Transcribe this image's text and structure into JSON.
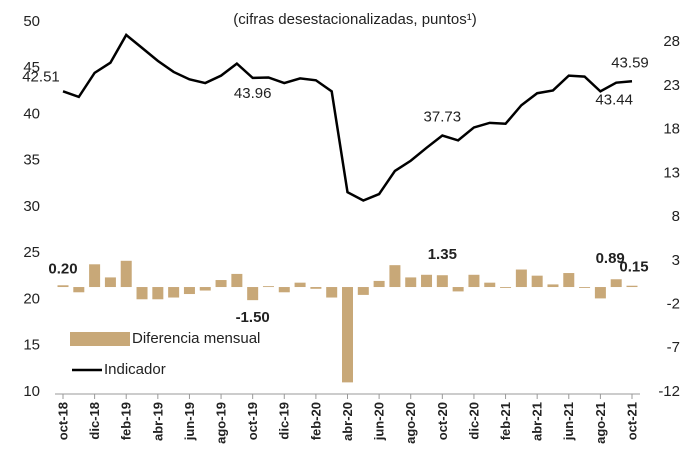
{
  "chart_data": {
    "type": "bar+line",
    "subtitle": "(cifras desestacionalizadas, puntos¹)",
    "categories": [
      "oct-18",
      null,
      "dic-18",
      null,
      "feb-19",
      null,
      "abr-19",
      null,
      "jun-19",
      null,
      "ago-19",
      null,
      "oct-19",
      null,
      "dic-19",
      null,
      "feb-20",
      null,
      "abr-20",
      null,
      "jun-20",
      null,
      "ago-20",
      null,
      "oct-20",
      null,
      "dic-20",
      null,
      "feb-21",
      null,
      "abr-21",
      null,
      "jun-21",
      null,
      "ago-21",
      null,
      "oct-21"
    ],
    "series": [
      {
        "name": "Diferencia mensual",
        "type": "bar",
        "axis": "y2",
        "color": "#c8a878",
        "values": [
          0.2,
          -0.6,
          2.6,
          1.1,
          3.0,
          -1.4,
          -1.4,
          -1.2,
          -0.8,
          -0.4,
          0.8,
          1.5,
          -1.5,
          0.1,
          -0.6,
          0.5,
          -0.2,
          -1.2,
          -10.9,
          -0.9,
          0.7,
          2.5,
          1.1,
          1.4,
          1.35,
          -0.5,
          1.4,
          0.5,
          -0.1,
          2.0,
          1.3,
          0.3,
          1.6,
          -0.1,
          -1.3,
          0.89,
          0.15
        ],
        "value_labels": [
          "0.20",
          null,
          null,
          null,
          null,
          null,
          null,
          null,
          null,
          null,
          null,
          null,
          "-1.50",
          null,
          null,
          null,
          null,
          null,
          null,
          null,
          null,
          null,
          null,
          null,
          "1.35",
          null,
          null,
          null,
          null,
          null,
          null,
          null,
          null,
          null,
          null,
          "0.89",
          "0.15"
        ]
      },
      {
        "name": "Indicador",
        "type": "line",
        "color": "#000000",
        "values": [
          42.51,
          41.9,
          44.5,
          45.6,
          48.6,
          47.2,
          45.8,
          44.6,
          43.8,
          43.4,
          44.2,
          45.5,
          43.96,
          44.0,
          43.4,
          43.9,
          43.7,
          42.5,
          31.6,
          30.7,
          31.4,
          33.9,
          35.0,
          36.4,
          37.73,
          37.2,
          38.6,
          39.1,
          39.0,
          41.0,
          42.3,
          42.6,
          44.2,
          44.1,
          42.5,
          43.44,
          43.59
        ],
        "value_labels": [
          "42.51",
          null,
          null,
          null,
          null,
          null,
          null,
          null,
          null,
          null,
          null,
          null,
          "43.96",
          null,
          null,
          null,
          null,
          null,
          null,
          null,
          null,
          null,
          null,
          null,
          "37.73",
          null,
          null,
          null,
          null,
          null,
          null,
          null,
          null,
          null,
          null,
          "43.44",
          "43.59"
        ]
      }
    ],
    "ylim": [
      10,
      50
    ],
    "yticks": [
      10,
      15,
      20,
      25,
      30,
      35,
      40,
      45,
      50
    ],
    "y2lim": [
      -12,
      30.3
    ],
    "y2ticks": [
      -12,
      -7,
      -2,
      3,
      8,
      13,
      18,
      23,
      28
    ],
    "legend": "lower left"
  }
}
